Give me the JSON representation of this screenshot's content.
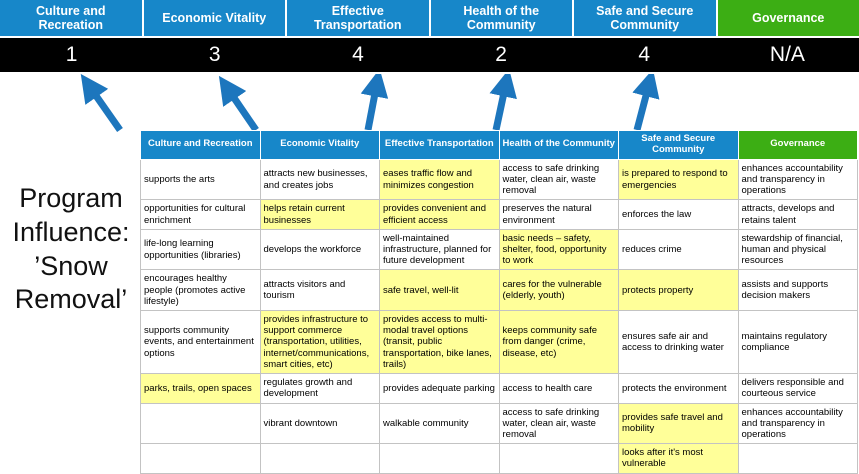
{
  "title": "Program Influence: ’Snow Removal’",
  "colors": {
    "header_blue": "#1787c9",
    "header_green": "#3cae14",
    "score_bg": "#000000",
    "highlight_yellow": "#ffff99",
    "arrow_blue": "#1d76bd"
  },
  "pillars": [
    {
      "label": "Culture and Recreation",
      "score": "1"
    },
    {
      "label": "Economic Vitality",
      "score": "3"
    },
    {
      "label": "Effective Transportation",
      "score": "4"
    },
    {
      "label": "Health of the Community",
      "score": "2"
    },
    {
      "label": "Safe and Secure Community",
      "score": "4"
    },
    {
      "label": "Governance",
      "score": "N/A"
    }
  ],
  "table": {
    "columns": [
      {
        "label": "Culture and Recreation",
        "accent": "blue"
      },
      {
        "label": "Economic Vitality",
        "accent": "blue"
      },
      {
        "label": "Effective Transportation",
        "accent": "blue"
      },
      {
        "label": "Health of the Community",
        "accent": "blue"
      },
      {
        "label": "Safe and Secure Community",
        "accent": "blue"
      },
      {
        "label": "Governance",
        "accent": "green"
      }
    ],
    "rows": [
      [
        {
          "text": "supports the arts",
          "hl": false
        },
        {
          "text": "attracts new businesses, and creates jobs",
          "hl": false
        },
        {
          "text": "eases traffic flow and minimizes congestion",
          "hl": true
        },
        {
          "text": "access to safe drinking water, clean air, waste removal",
          "hl": false
        },
        {
          "text": "is prepared to respond to emergencies",
          "hl": true
        },
        {
          "text": "enhances accountability and transparency in operations",
          "hl": false
        }
      ],
      [
        {
          "text": "opportunities for cultural enrichment",
          "hl": false
        },
        {
          "text": "helps retain current businesses",
          "hl": true
        },
        {
          "text": "provides convenient and efficient access",
          "hl": true
        },
        {
          "text": "preserves the natural environment",
          "hl": false
        },
        {
          "text": "enforces the law",
          "hl": false
        },
        {
          "text": "attracts, develops and retains talent",
          "hl": false
        }
      ],
      [
        {
          "text": "life-long learning opportunities (libraries)",
          "hl": false
        },
        {
          "text": "develops the workforce",
          "hl": false
        },
        {
          "text": "well-maintained infrastructure, planned for future development",
          "hl": false
        },
        {
          "text": "basic needs – safety, shelter, food, opportunity to work",
          "hl": true
        },
        {
          "text": "reduces crime",
          "hl": false
        },
        {
          "text": "stewardship of financial, human and physical resources",
          "hl": false
        }
      ],
      [
        {
          "text": "encourages healthy people (promotes active lifestyle)",
          "hl": false
        },
        {
          "text": "attracts visitors and tourism",
          "hl": false
        },
        {
          "text": "safe travel, well-lit",
          "hl": true
        },
        {
          "text": "cares for the vulnerable (elderly, youth)",
          "hl": true
        },
        {
          "text": "protects property",
          "hl": true
        },
        {
          "text": "assists and supports decision makers",
          "hl": false
        }
      ],
      [
        {
          "text": "supports community events, and entertainment options",
          "hl": false
        },
        {
          "text": "provides infrastructure to support commerce (transportation, utilities, internet/communications, smart cities, etc)",
          "hl": true
        },
        {
          "text": "provides access to multi-modal travel options (transit, public transportation, bike lanes, trails)",
          "hl": true
        },
        {
          "text": "keeps community safe from danger (crime, disease, etc)",
          "hl": true
        },
        {
          "text": "ensures safe air and access to drinking water",
          "hl": false
        },
        {
          "text": "maintains regulatory compliance",
          "hl": false
        }
      ],
      [
        {
          "text": "parks, trails, open spaces",
          "hl": true
        },
        {
          "text": "regulates growth and development",
          "hl": false
        },
        {
          "text": "provides adequate parking",
          "hl": false
        },
        {
          "text": "access to health care",
          "hl": false
        },
        {
          "text": "protects the environment",
          "hl": false
        },
        {
          "text": "delivers responsible and courteous service",
          "hl": false
        }
      ],
      [
        {
          "text": "",
          "hl": false
        },
        {
          "text": "vibrant downtown",
          "hl": false
        },
        {
          "text": "walkable community",
          "hl": false
        },
        {
          "text": "access to safe drinking water, clean air, waste removal",
          "hl": false
        },
        {
          "text": "provides safe travel and mobility",
          "hl": true
        },
        {
          "text": "enhances accountability and transparency in operations",
          "hl": false
        }
      ],
      [
        {
          "text": "",
          "hl": false
        },
        {
          "text": "",
          "hl": false
        },
        {
          "text": "",
          "hl": false
        },
        {
          "text": "",
          "hl": false
        },
        {
          "text": "looks after it's most vulnerable",
          "hl": true
        },
        {
          "text": "",
          "hl": false
        }
      ]
    ]
  }
}
